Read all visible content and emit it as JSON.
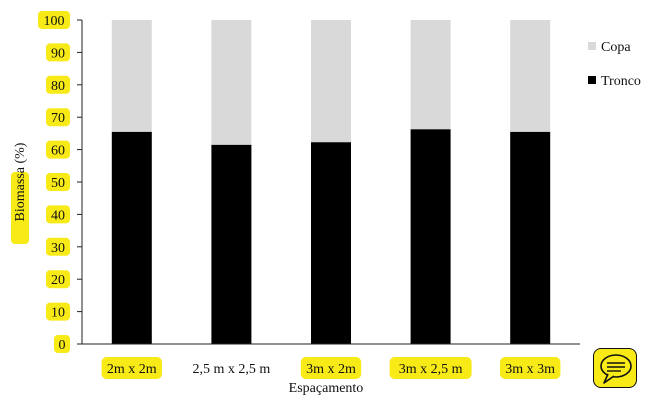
{
  "chart_data": {
    "type": "bar",
    "stacked": true,
    "categories": [
      "2m x 2m",
      "2,5 m x 2,5 m",
      "3m x 2m",
      "3m x 2,5 m",
      "3m x 3m"
    ],
    "series": [
      {
        "name": "Tronco",
        "values": [
          65.5,
          61.5,
          62.3,
          66.3,
          65.5
        ],
        "color": "#000000"
      },
      {
        "name": "Copa",
        "values": [
          34.5,
          38.5,
          37.7,
          33.7,
          34.5
        ],
        "color": "#d9d9d9"
      }
    ],
    "title": "",
    "xlabel": "Espaçamento",
    "ylabel": "Biomassa (%)",
    "ylim": [
      0,
      100
    ],
    "yticks": [
      0,
      10,
      20,
      30,
      40,
      50,
      60,
      70,
      80,
      90,
      100
    ],
    "grid": false,
    "legend": "right",
    "legend_order": [
      "Copa",
      "Tronco"
    ],
    "highlight_color": "#f7ea17"
  },
  "comment_icon": "speech-bubble-icon"
}
